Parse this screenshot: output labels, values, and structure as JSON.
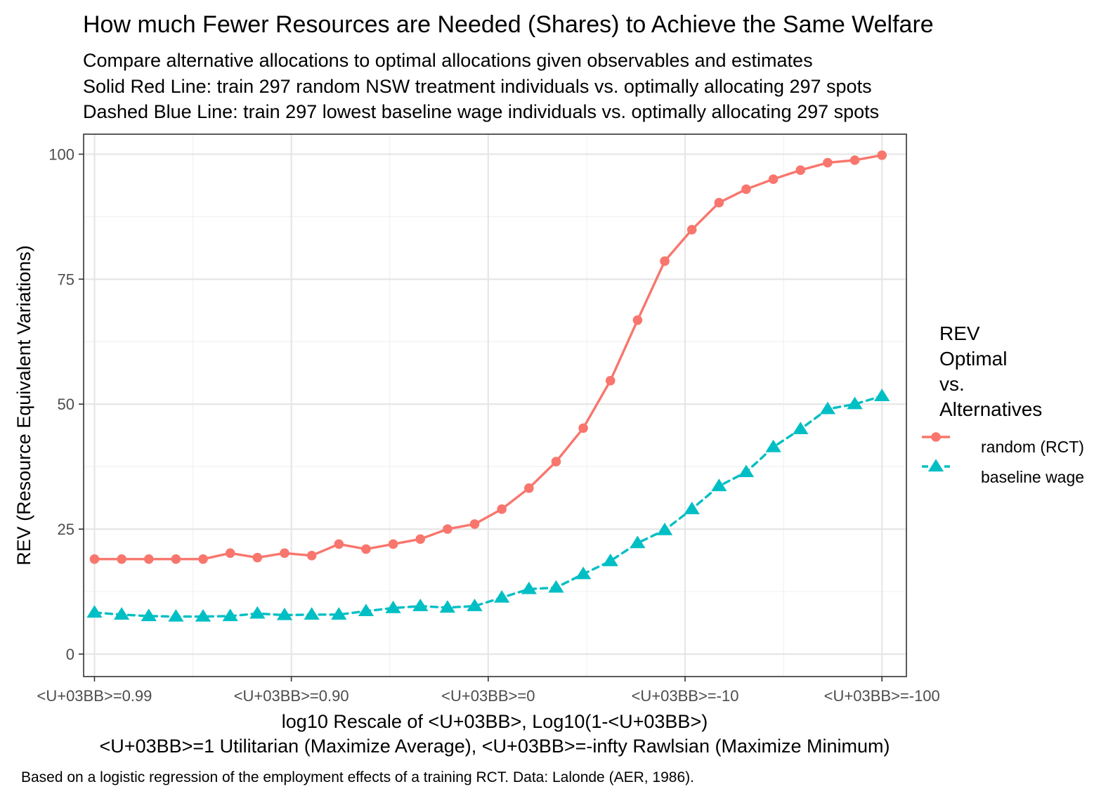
{
  "chart_data": {
    "type": "line",
    "title": "How much Fewer Resources are Needed (Shares) to Achieve the Same Welfare",
    "subtitle_lines": [
      "Compare alternative allocations to optimal allocations given observables and estimates",
      "Solid Red Line: train 297 random NSW treatment individuals vs. optimally allocating 297 spots",
      "Dashed Blue Line: train 297 lowest baseline wage individuals vs. optimally allocating 297 spots"
    ],
    "xlabel_lines": [
      "log10 Rescale of <U+03BB>, Log10(1-<U+03BB>)",
      "<U+03BB>=1 Utilitarian (Maximize Average), <U+03BB>=-infty Rawlsian (Maximize Minimum)"
    ],
    "ylabel": "REV (Resource Equivalent Variations)",
    "caption": "Based on a logistic regression of the employment effects of a training RCT. Data: Lalonde (AER, 1986).",
    "x_tick_labels": [
      "<U+03BB>=0.99",
      "<U+03BB>=0.90",
      "<U+03BB>=0",
      "<U+03BB>=-10",
      "<U+03BB>=-100"
    ],
    "y_ticks": [
      0,
      25,
      50,
      75,
      100
    ],
    "ylim": [
      -4.5,
      104
    ],
    "grid": true,
    "legend": {
      "title_lines": [
        "REV",
        "Optimal",
        "vs.",
        "Alternatives"
      ],
      "placement": "right"
    },
    "x_index": [
      1,
      2,
      3,
      4,
      5,
      6,
      7,
      8,
      9,
      10,
      11,
      12,
      13,
      14,
      15,
      16,
      17,
      18,
      19,
      20,
      21,
      22,
      23,
      24,
      25,
      26,
      27,
      28,
      29,
      30
    ],
    "series": [
      {
        "name": "random (RCT)",
        "color": "#F8766D",
        "line": "solid",
        "marker": "circle",
        "values": [
          19,
          19,
          19,
          19,
          19,
          20.2,
          19.3,
          20.2,
          19.7,
          22,
          21,
          22,
          23,
          25,
          26,
          29,
          33.2,
          38.5,
          45.2,
          54.7,
          66.8,
          78.6,
          84.9,
          90.3,
          93,
          95,
          96.8,
          98.3,
          98.8,
          99.8
        ]
      },
      {
        "name": "baseline wage",
        "color": "#00BFC4",
        "line": "dashed",
        "marker": "triangle",
        "values": [
          8.3,
          7.9,
          7.6,
          7.5,
          7.5,
          7.6,
          8.1,
          7.8,
          7.9,
          7.9,
          8.6,
          9.2,
          9.6,
          9.3,
          9.6,
          11.3,
          13,
          13.3,
          16,
          18.6,
          22.2,
          24.8,
          29,
          33.6,
          36.4,
          41.4,
          45,
          49,
          50,
          51.6
        ]
      }
    ]
  }
}
